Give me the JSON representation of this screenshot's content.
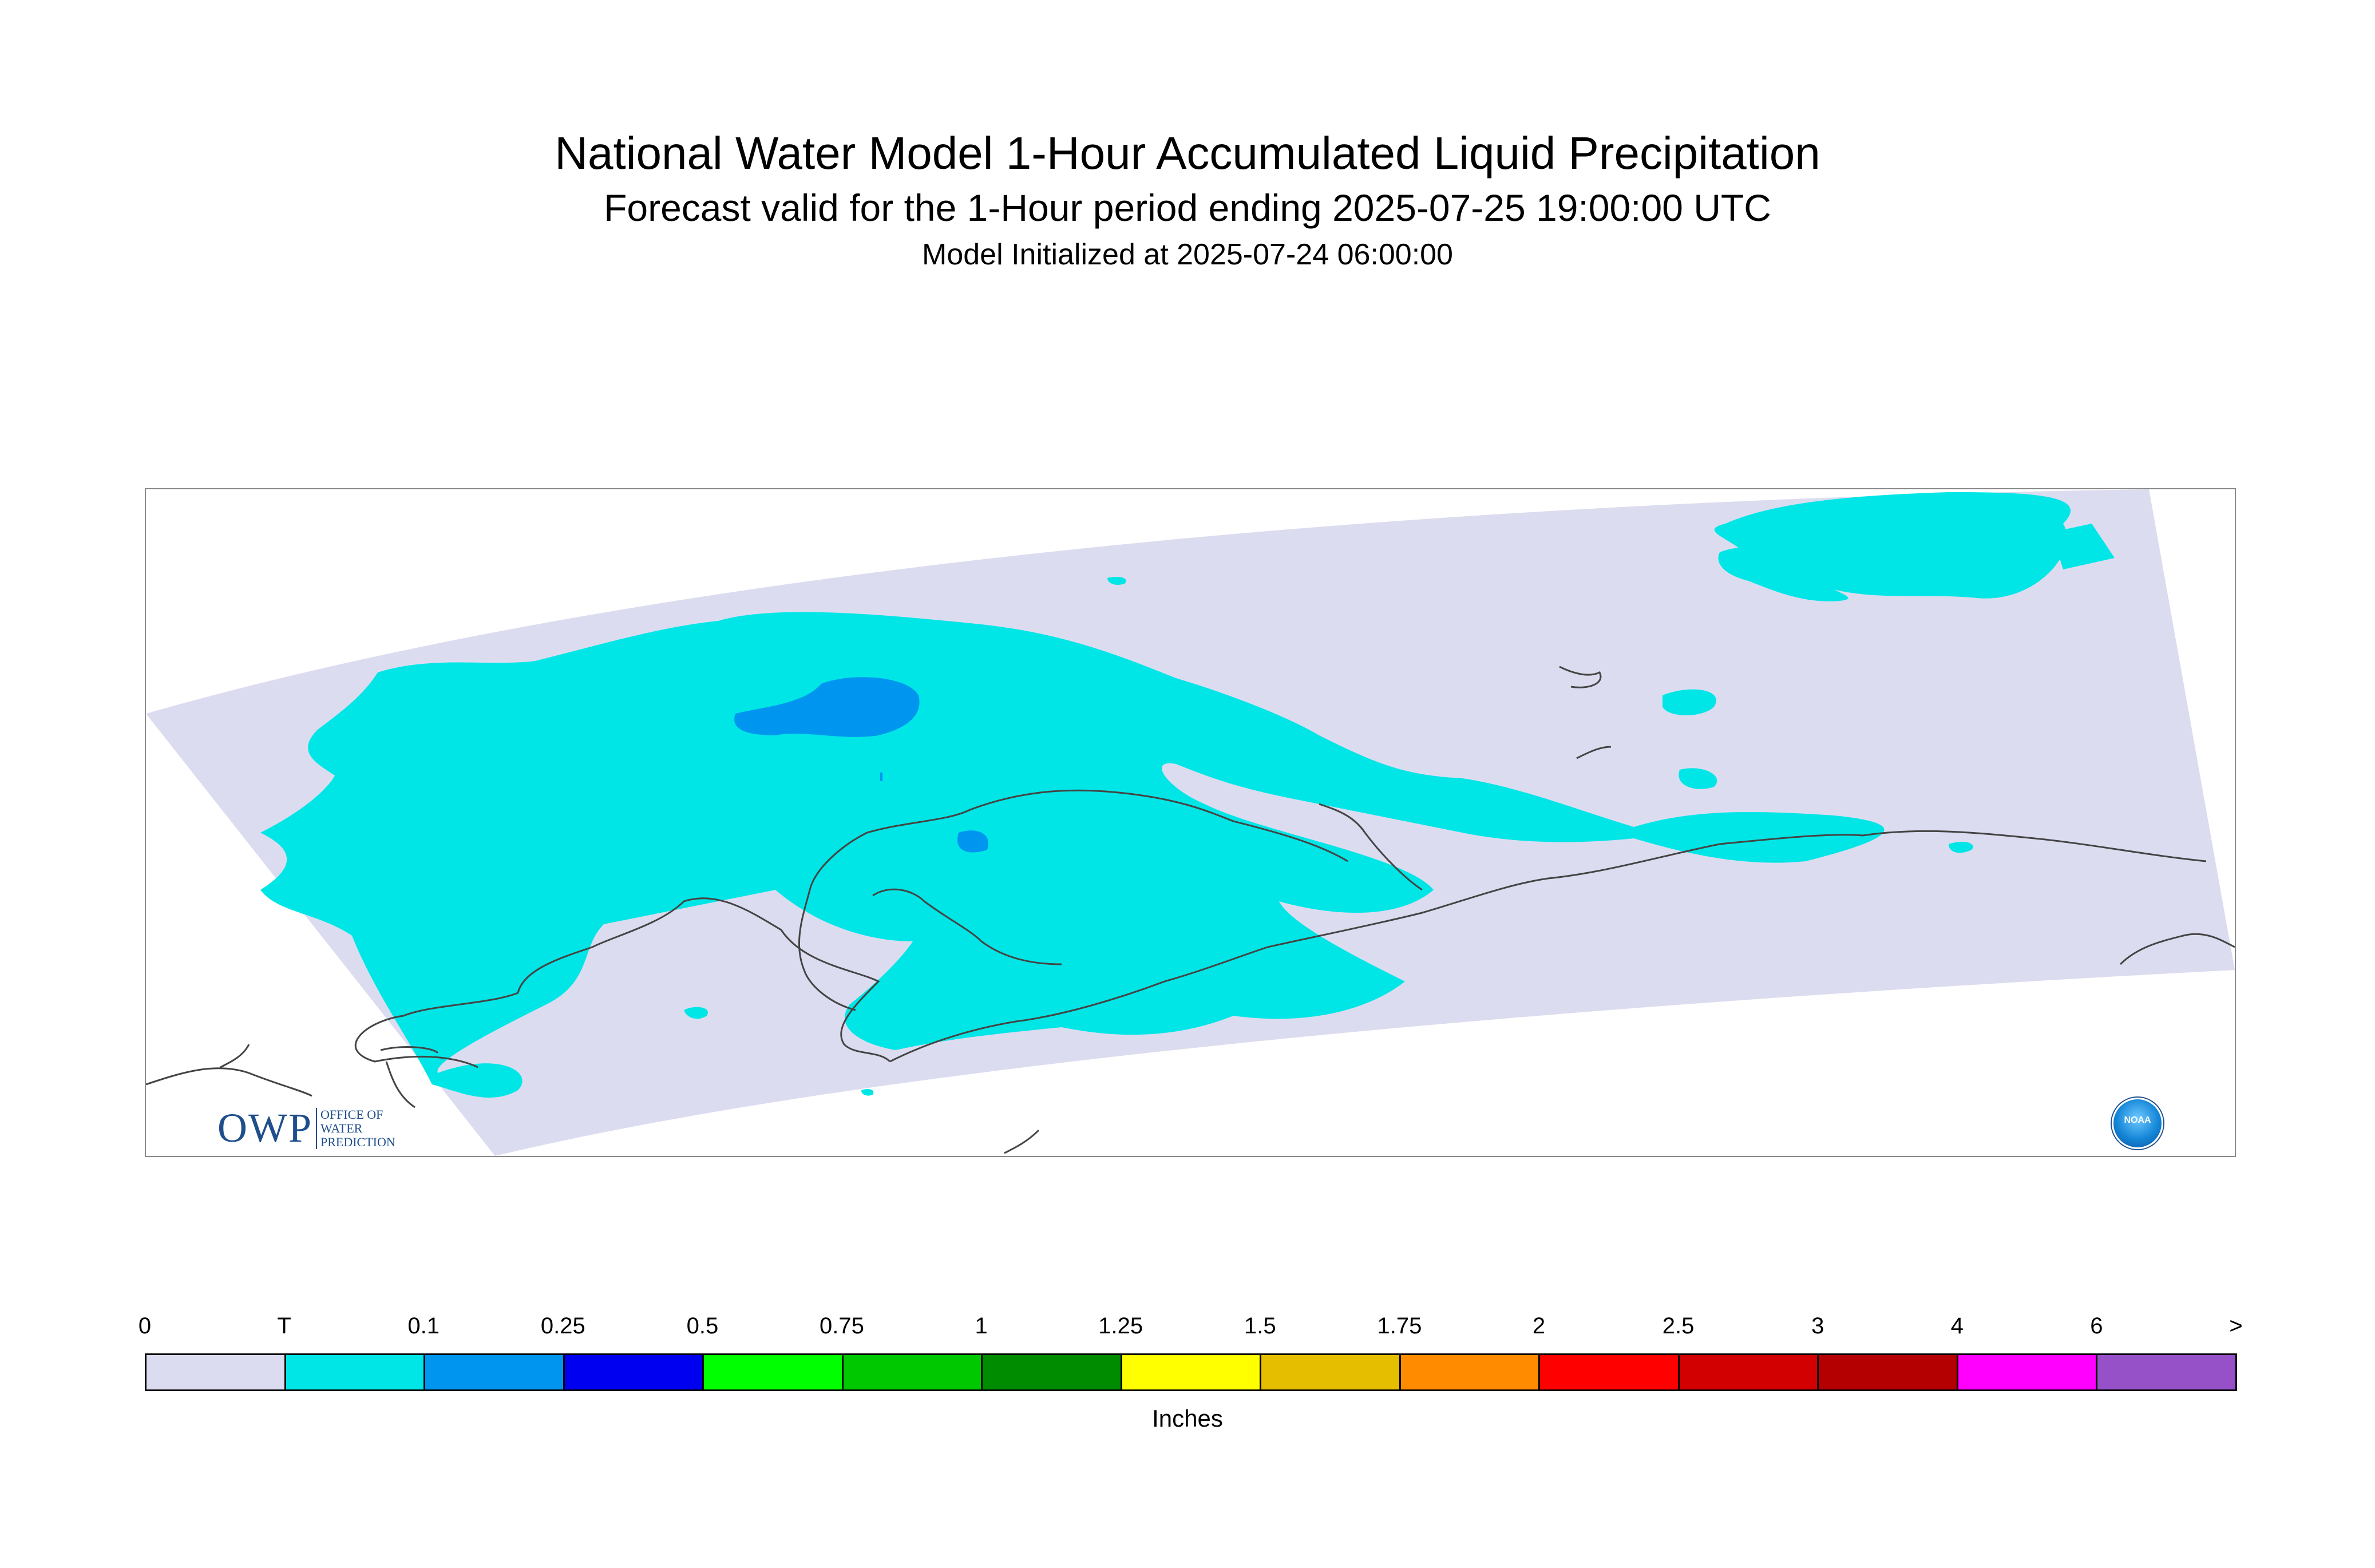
{
  "title": "National Water Model 1-Hour Accumulated Liquid Precipitation",
  "subtitle": "Forecast valid for the 1-Hour period ending 2025-07-25 19:00:00 UTC",
  "init_line": "Model Initialized at 2025-07-24 06:00:00",
  "logos": {
    "owp_main": "OWP",
    "owp_sub_1": "OFFICE OF",
    "owp_sub_2": "WATER",
    "owp_sub_3": "PREDICTION",
    "noaa": "NOAA"
  },
  "map_colors": {
    "domain_background": "#dcdcf0",
    "trace": "#00e6e6",
    "light": "#0096f0",
    "coastline": "#444444"
  },
  "legend": {
    "units": "Inches",
    "labels": [
      "0",
      "T",
      "0.1",
      "0.25",
      "0.5",
      "0.75",
      "1",
      "1.25",
      "1.5",
      "1.75",
      "2",
      "2.5",
      "3",
      "4",
      "6",
      ">"
    ],
    "colors": [
      "#dcdcf0",
      "#00e6e6",
      "#0096f0",
      "#0000f0",
      "#00ff00",
      "#00c800",
      "#008c00",
      "#ffff00",
      "#e6be00",
      "#ff8c00",
      "#ff0000",
      "#d20000",
      "#b40000",
      "#ff00ff",
      "#9650c8"
    ]
  }
}
